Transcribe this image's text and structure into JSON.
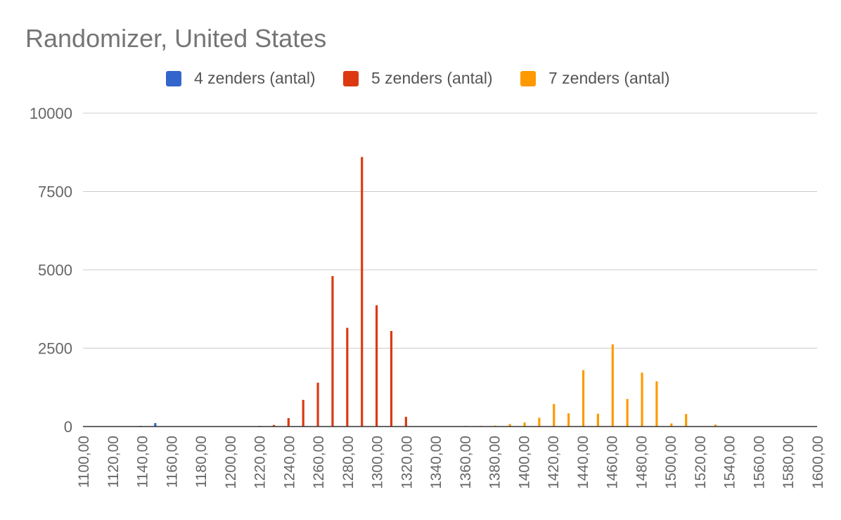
{
  "chart_data": {
    "type": "bar",
    "title": "Randomizer, United States",
    "xlabel": "",
    "ylabel": "",
    "xlim": [
      1100,
      1600
    ],
    "ylim": [
      0,
      10000
    ],
    "y_ticks": [
      "0",
      "2500",
      "5000",
      "7500",
      "10000"
    ],
    "x_ticks": [
      "1100,00",
      "1120,00",
      "1140,00",
      "1160,00",
      "1180,00",
      "1200,00",
      "1220,00",
      "1240,00",
      "1260,00",
      "1280,00",
      "1300,00",
      "1320,00",
      "1340,00",
      "1360,00",
      "1380,00",
      "1400,00",
      "1420,00",
      "1440,00",
      "1460,00",
      "1480,00",
      "1500,00",
      "1520,00",
      "1540,00",
      "1560,00",
      "1580,00",
      "1600,00"
    ],
    "grid": true,
    "legend_position": "top",
    "series": [
      {
        "name": "4 zenders (antal)",
        "color": "#3366cc",
        "points": [
          [
            1140,
            10
          ],
          [
            1150,
            110
          ]
        ]
      },
      {
        "name": "5 zenders (antal)",
        "color": "#dc3912",
        "points": [
          [
            1220,
            5
          ],
          [
            1230,
            50
          ],
          [
            1240,
            270
          ],
          [
            1250,
            850
          ],
          [
            1260,
            1400
          ],
          [
            1270,
            4800
          ],
          [
            1280,
            3150
          ],
          [
            1290,
            8600
          ],
          [
            1300,
            3870
          ],
          [
            1310,
            3050
          ],
          [
            1320,
            310
          ]
        ]
      },
      {
        "name": "7 zenders (antal)",
        "color": "#ff9900",
        "points": [
          [
            1220,
            10
          ],
          [
            1230,
            20
          ],
          [
            1360,
            10
          ],
          [
            1370,
            20
          ],
          [
            1380,
            30
          ],
          [
            1390,
            80
          ],
          [
            1400,
            130
          ],
          [
            1410,
            280
          ],
          [
            1420,
            720
          ],
          [
            1430,
            420
          ],
          [
            1440,
            1800
          ],
          [
            1450,
            410
          ],
          [
            1460,
            2620
          ],
          [
            1470,
            880
          ],
          [
            1480,
            1720
          ],
          [
            1490,
            1440
          ],
          [
            1500,
            100
          ],
          [
            1510,
            400
          ],
          [
            1530,
            60
          ]
        ]
      }
    ]
  }
}
